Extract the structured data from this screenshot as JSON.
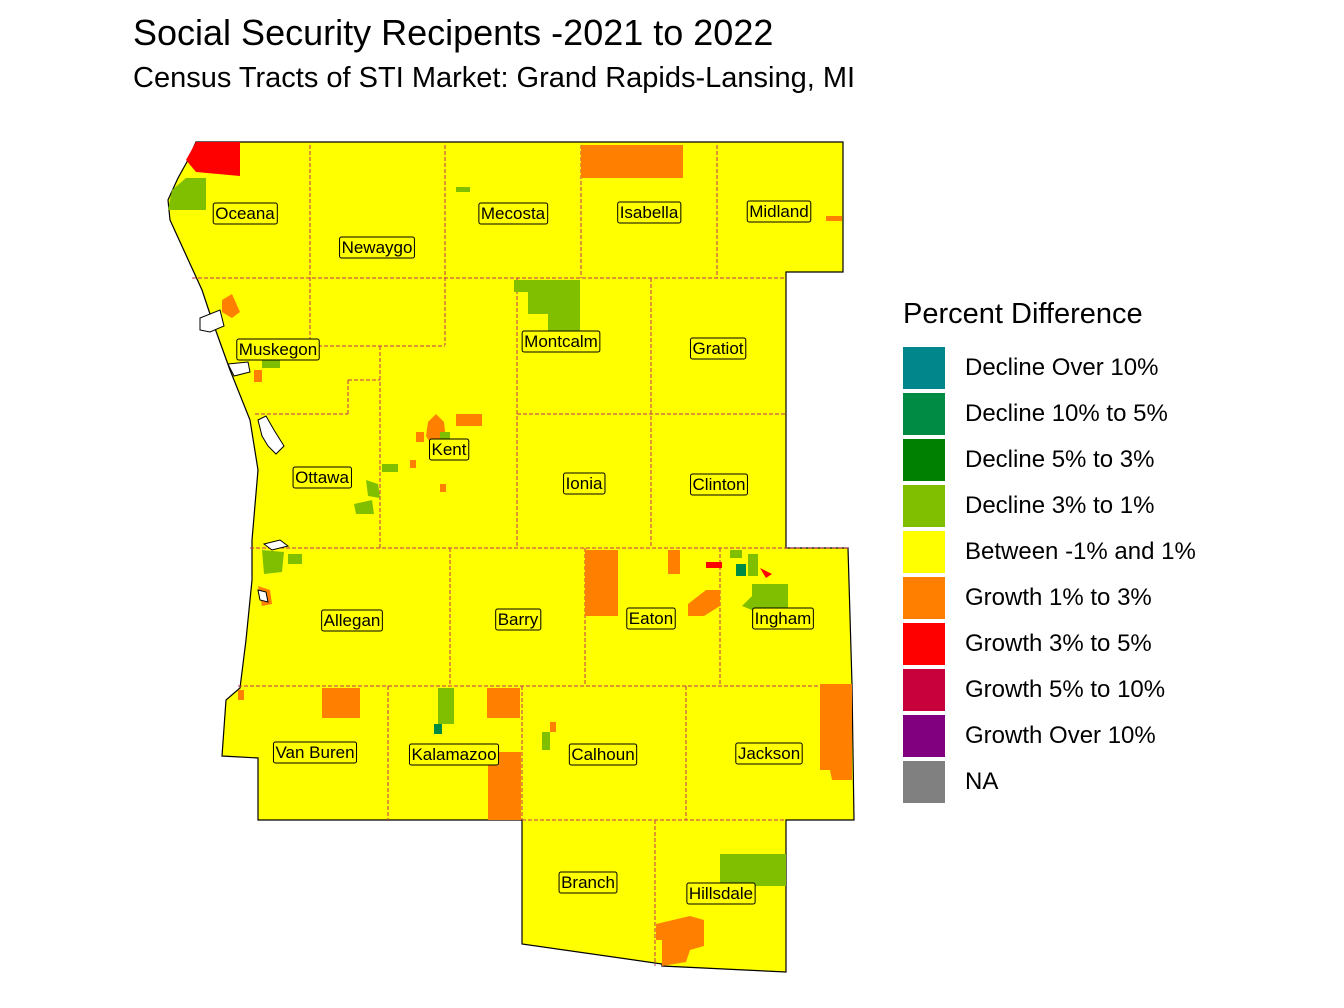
{
  "title": "Social Security Recipents -2021 to 2022",
  "subtitle": "Census Tracts of STI Market: Grand Rapids-Lansing, MI",
  "legend": {
    "title": "Percent Difference",
    "items": [
      {
        "label": "Decline Over 10%",
        "color": "#00868B"
      },
      {
        "label": "Decline 10% to 5%",
        "color": "#008B45"
      },
      {
        "label": "Decline 5% to 3%",
        "color": "#008000"
      },
      {
        "label": "Decline 3% to 1%",
        "color": "#7FBF00"
      },
      {
        "label": "Between -1% and 1%",
        "color": "#FFFF00"
      },
      {
        "label": "Growth 1% to 3%",
        "color": "#FF8000"
      },
      {
        "label": "Growth 3% to 5%",
        "color": "#FF0000"
      },
      {
        "label": "Growth 5% to 10%",
        "color": "#C8003C"
      },
      {
        "label": "Growth Over 10%",
        "color": "#800080"
      },
      {
        "label": "NA",
        "color": "#808080"
      }
    ]
  },
  "counties": {
    "oceana": "Oceana",
    "newaygo": "Newaygo",
    "mecosta": "Mecosta",
    "isabella": "Isabella",
    "midland": "Midland",
    "muskegon": "Muskegon",
    "montcalm": "Montcalm",
    "gratiot": "Gratiot",
    "kent": "Kent",
    "ottawa": "Ottawa",
    "ionia": "Ionia",
    "clinton": "Clinton",
    "allegan": "Allegan",
    "barry": "Barry",
    "eaton": "Eaton",
    "ingham": "Ingham",
    "van_buren": "Van Buren",
    "kalamazoo": "Kalamazoo",
    "calhoun": "Calhoun",
    "jackson": "Jackson",
    "branch": "Branch",
    "hillsdale": "Hillsdale"
  }
}
